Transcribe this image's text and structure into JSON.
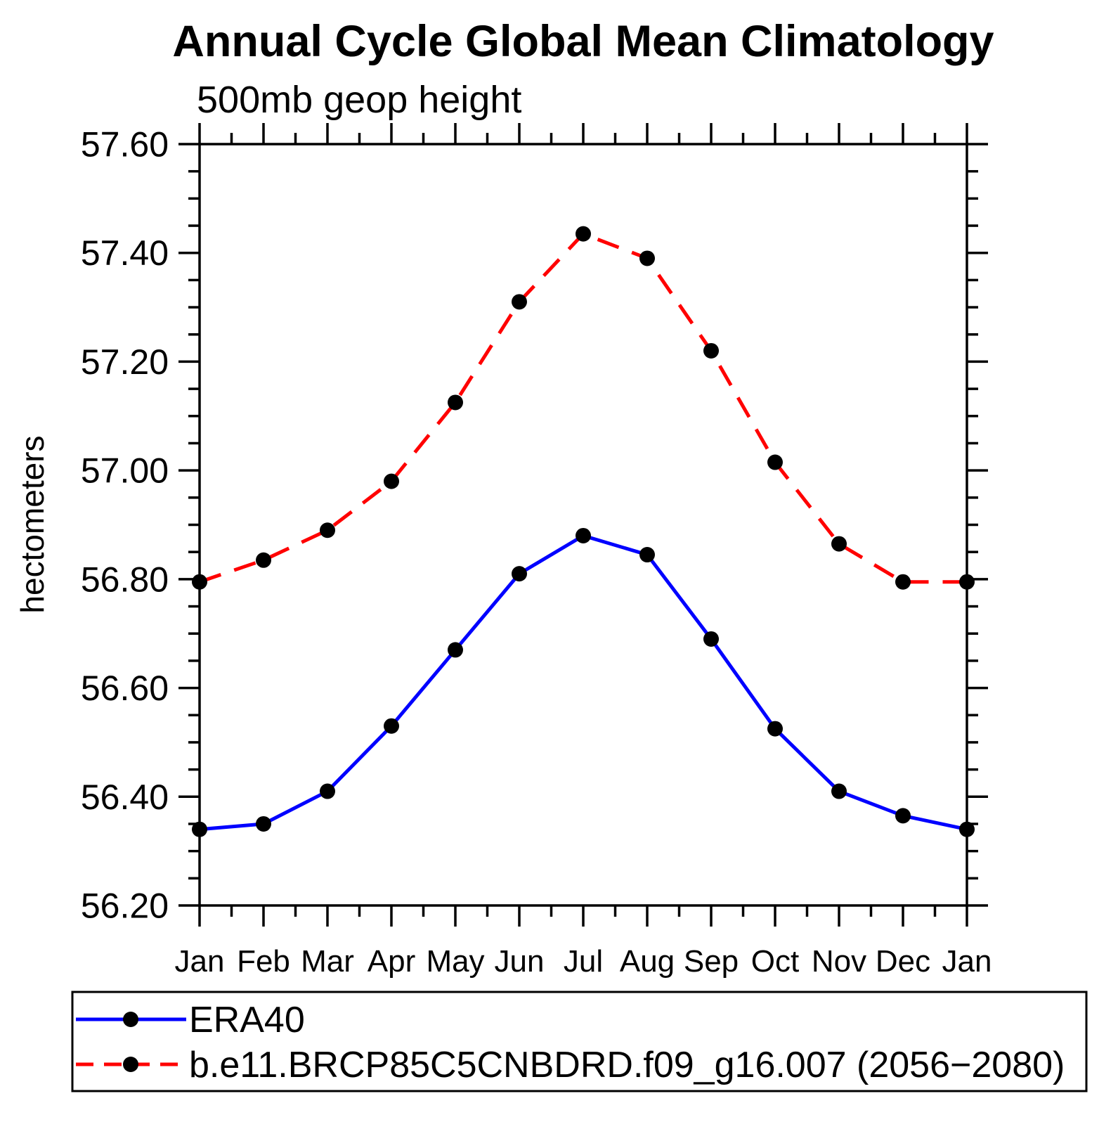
{
  "page": {
    "background": "#ffffff",
    "text_color": "#000000"
  },
  "chart_data": {
    "type": "line",
    "title": "Annual Cycle Global Mean Climatology",
    "subtitle": "500mb geop height",
    "ylabel": "hectometers",
    "xlabel": "",
    "categories": [
      "Jan",
      "Feb",
      "Mar",
      "Apr",
      "May",
      "Jun",
      "Jul",
      "Aug",
      "Sep",
      "Oct",
      "Nov",
      "Dec",
      "Jan"
    ],
    "ylim": [
      56.2,
      57.6
    ],
    "y_major_step": 0.2,
    "y_minor_step": 0.05,
    "y_tick_labels": [
      "56.20",
      "56.40",
      "56.60",
      "56.80",
      "57.00",
      "57.20",
      "57.40",
      "57.60"
    ],
    "grid": false,
    "legend_position": "bottom",
    "marker": "filled-circle",
    "marker_color": "#000000",
    "series": [
      {
        "name": "ERA40",
        "color": "#0000ff",
        "line_style": "solid",
        "values": [
          56.34,
          56.35,
          56.41,
          56.53,
          56.67,
          56.81,
          56.88,
          56.845,
          56.69,
          56.525,
          56.41,
          56.365,
          56.34
        ]
      },
      {
        "name": "b.e11.BRCP85C5CNBDRD.f09_g16.007 (2056−2080)",
        "color": "#ff0000",
        "line_style": "dashed",
        "values": [
          56.795,
          56.835,
          56.89,
          56.98,
          57.125,
          57.31,
          57.435,
          57.39,
          57.22,
          57.015,
          56.865,
          56.795,
          56.795
        ]
      }
    ]
  }
}
